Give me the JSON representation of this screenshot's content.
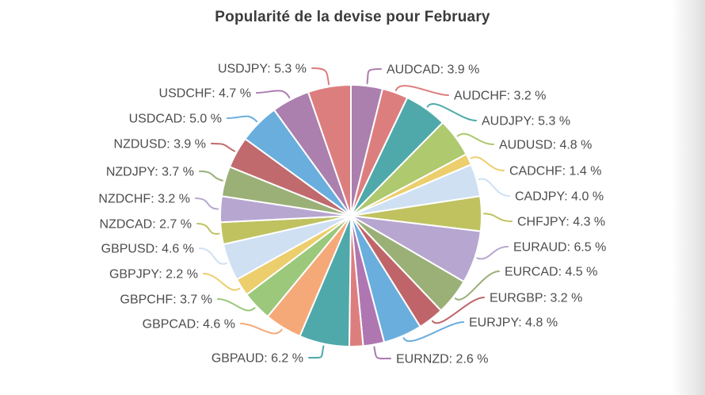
{
  "chart_data": {
    "type": "pie",
    "title": "Popularité de la devise pour February",
    "unit": "%",
    "legend": "none",
    "direction": "clockwise",
    "start_angle_deg": 0,
    "label_format": "NAME: VALUE %",
    "slices": [
      {
        "label": "AUDCAD",
        "value": 3.9,
        "color": "#ab7fae"
      },
      {
        "label": "AUDCHF",
        "value": 3.2,
        "color": "#dd7e7e"
      },
      {
        "label": "AUDJPY",
        "value": 5.3,
        "color": "#4fa9aa"
      },
      {
        "label": "AUDUSD",
        "value": 4.8,
        "color": "#aec96e"
      },
      {
        "label": "CADCHF",
        "value": 1.4,
        "color": "#ecce6d"
      },
      {
        "label": "CADJPY",
        "value": 4.0,
        "color": "#cfe0f3"
      },
      {
        "label": "CHFJPY",
        "value": 4.3,
        "color": "#bfc25f"
      },
      {
        "label": "EURAUD",
        "value": 6.5,
        "color": "#b7a6d0"
      },
      {
        "label": "EURCAD",
        "value": 4.5,
        "color": "#9ab077"
      },
      {
        "label": "EURGBP",
        "value": 3.2,
        "color": "#bf6569"
      },
      {
        "label": "EURJPY",
        "value": 4.8,
        "color": "#6aaede"
      },
      {
        "label": "EURNZD",
        "value": 2.6,
        "color": "#ae77b2"
      },
      {
        "label": "",
        "value": 1.7,
        "color": "#dd7e7e",
        "label_shown": false,
        "estimated": true
      },
      {
        "label": "GBPAUD",
        "value": 6.2,
        "color": "#4fa9aa"
      },
      {
        "label": "GBPCAD",
        "value": 4.6,
        "color": "#f5a978"
      },
      {
        "label": "GBPCHF",
        "value": 3.7,
        "color": "#9bc87b"
      },
      {
        "label": "GBPJPY",
        "value": 2.2,
        "color": "#ecce6d"
      },
      {
        "label": "GBPUSD",
        "value": 4.6,
        "color": "#cfe0f3"
      },
      {
        "label": "NZDCAD",
        "value": 2.7,
        "color": "#bfc25f"
      },
      {
        "label": "NZDCHF",
        "value": 3.2,
        "color": "#b7a6d0"
      },
      {
        "label": "NZDJPY",
        "value": 3.7,
        "color": "#9ab077"
      },
      {
        "label": "NZDUSD",
        "value": 3.9,
        "color": "#c06a6d"
      },
      {
        "label": "USDCAD",
        "value": 5.0,
        "color": "#6aaede"
      },
      {
        "label": "USDCHF",
        "value": 4.7,
        "color": "#ab7fae"
      },
      {
        "label": "USDJPY",
        "value": 5.3,
        "color": "#dd7e7e"
      }
    ]
  },
  "text_colors": {
    "title": "#3b3b3b",
    "labels": "#4d4d4d"
  }
}
